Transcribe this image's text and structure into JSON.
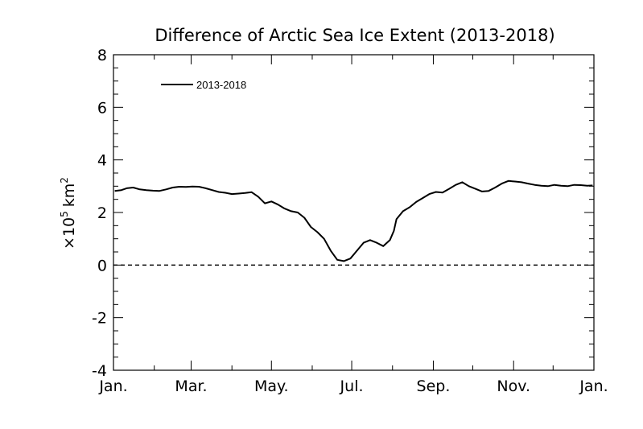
{
  "chart_data": {
    "type": "line",
    "title": "Difference of Arctic Sea Ice Extent (2013-2018)",
    "xlabel": "",
    "ylabel": "×10⁵ km²",
    "ylabel_parts": {
      "prefix": "×10",
      "exponent": "5",
      "unit": "km",
      "unit_exponent": "2"
    },
    "xlim": [
      0,
      365
    ],
    "ylim": [
      -4,
      8
    ],
    "y_ticks": [
      -4,
      -2,
      0,
      2,
      4,
      6,
      8
    ],
    "y_tick_labels": [
      "-4",
      "-2",
      "0",
      "2",
      "4",
      "6",
      "8"
    ],
    "x_ticks": [
      0,
      59,
      120,
      181,
      243,
      304,
      365
    ],
    "x_tick_labels": [
      "Jan.",
      "Mar.",
      "May.",
      "Jul.",
      "Sep.",
      "Nov.",
      "Jan."
    ],
    "reference_line": {
      "y": 0,
      "style": "dashed"
    },
    "legend": {
      "position": "top-left",
      "entries": [
        "2013-2018"
      ]
    },
    "series": [
      {
        "name": "2013-2018",
        "x": [
          1,
          6,
          10,
          15,
          20,
          25,
          30,
          35,
          40,
          45,
          50,
          55,
          60,
          65,
          70,
          75,
          80,
          85,
          90,
          95,
          100,
          105,
          110,
          115,
          120,
          125,
          130,
          135,
          140,
          145,
          150,
          155,
          160,
          165,
          170,
          175,
          180,
          185,
          190,
          195,
          200,
          205,
          210,
          213,
          215,
          220,
          225,
          230,
          235,
          240,
          245,
          250,
          255,
          260,
          265,
          270,
          275,
          280,
          285,
          290,
          295,
          300,
          305,
          310,
          315,
          320,
          325,
          330,
          335,
          340,
          345,
          350,
          355,
          360,
          364
        ],
        "values": [
          2.82,
          2.85,
          2.92,
          2.95,
          2.88,
          2.85,
          2.83,
          2.82,
          2.88,
          2.95,
          2.98,
          2.97,
          2.99,
          2.98,
          2.92,
          2.85,
          2.78,
          2.75,
          2.7,
          2.72,
          2.74,
          2.77,
          2.6,
          2.35,
          2.42,
          2.3,
          2.15,
          2.05,
          2.0,
          1.8,
          1.45,
          1.25,
          1.0,
          0.55,
          0.2,
          0.15,
          0.25,
          0.55,
          0.85,
          0.95,
          0.85,
          0.72,
          0.95,
          1.3,
          1.75,
          2.05,
          2.2,
          2.4,
          2.55,
          2.7,
          2.78,
          2.76,
          2.9,
          3.05,
          3.15,
          3.0,
          2.9,
          2.8,
          2.82,
          2.95,
          3.1,
          3.2,
          3.18,
          3.15,
          3.1,
          3.05,
          3.02,
          3.0,
          3.05,
          3.02,
          3.0,
          3.05,
          3.04,
          3.02,
          3.03
        ]
      }
    ]
  }
}
